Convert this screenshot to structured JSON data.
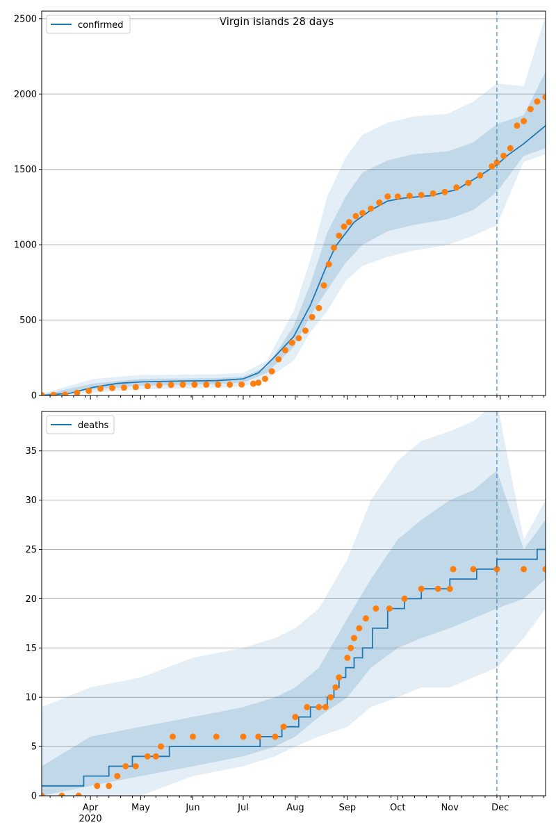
{
  "title": "Virgin Islands 28 days",
  "colors": {
    "model_line": "#1f77b4",
    "observed": "#ff7f0e",
    "band": "#1f77b4",
    "cutoff": "#1f77b4",
    "grid": "#b0b0b0"
  },
  "x_axis": {
    "months": [
      "Apr",
      "May",
      "Jun",
      "Jul",
      "Aug",
      "Sep",
      "Oct",
      "Nov",
      "Dec"
    ],
    "year_label": "2020",
    "start_date": "2020-03-03",
    "end_date": "2020-12-28",
    "forecast_start": "2020-11-29"
  },
  "chart_data": [
    {
      "type": "line",
      "legend_label": "confirmed",
      "legend_position": "top-left",
      "grid": "horizontal",
      "ylim": [
        0,
        2550
      ],
      "yticks": [
        0,
        500,
        1000,
        1500,
        2000,
        2500
      ],
      "model": {
        "x": [
          "2020-03-03",
          "2020-03-20",
          "2020-04-03",
          "2020-04-17",
          "2020-05-01",
          "2020-05-22",
          "2020-06-15",
          "2020-07-01",
          "2020-07-10",
          "2020-07-20",
          "2020-07-31",
          "2020-08-10",
          "2020-08-20",
          "2020-08-25",
          "2020-09-05",
          "2020-09-15",
          "2020-09-25",
          "2020-10-05",
          "2020-10-20",
          "2020-11-05",
          "2020-11-19",
          "2020-11-29",
          "2020-12-05",
          "2020-12-15",
          "2020-12-28"
        ],
        "y": [
          0,
          15,
          55,
          80,
          90,
          95,
          98,
          110,
          150,
          260,
          390,
          600,
          870,
          990,
          1150,
          1230,
          1290,
          1310,
          1325,
          1365,
          1460,
          1530,
          1590,
          1670,
          1790
        ]
      },
      "band_outer": {
        "x": [
          "2020-03-03",
          "2020-04-03",
          "2020-05-01",
          "2020-06-15",
          "2020-07-01",
          "2020-07-15",
          "2020-07-31",
          "2020-08-10",
          "2020-08-20",
          "2020-08-31",
          "2020-09-10",
          "2020-09-25",
          "2020-10-10",
          "2020-10-31",
          "2020-11-15",
          "2020-11-29",
          "2020-12-15",
          "2020-12-28"
        ],
        "low": [
          0,
          20,
          40,
          50,
          60,
          110,
          230,
          420,
          560,
          760,
          860,
          920,
          960,
          1000,
          1060,
          1130,
          1550,
          1600
        ],
        "high": [
          10,
          110,
          135,
          140,
          150,
          230,
          560,
          900,
          1320,
          1580,
          1730,
          1810,
          1850,
          1870,
          1950,
          2070,
          2050,
          2520
        ]
      },
      "band_inner": {
        "x": [
          "2020-03-03",
          "2020-04-03",
          "2020-05-01",
          "2020-06-15",
          "2020-07-01",
          "2020-07-15",
          "2020-07-31",
          "2020-08-10",
          "2020-08-20",
          "2020-08-31",
          "2020-09-10",
          "2020-09-25",
          "2020-10-10",
          "2020-10-31",
          "2020-11-15",
          "2020-11-29",
          "2020-12-15",
          "2020-12-28"
        ],
        "low": [
          0,
          40,
          65,
          75,
          85,
          150,
          320,
          530,
          700,
          880,
          1000,
          1090,
          1130,
          1170,
          1230,
          1350,
          1590,
          1640
        ],
        "high": [
          5,
          80,
          110,
          115,
          125,
          190,
          460,
          740,
          1080,
          1320,
          1480,
          1560,
          1600,
          1620,
          1680,
          1800,
          1860,
          2150
        ]
      },
      "observed": {
        "x": [
          "2020-03-03",
          "2020-03-10",
          "2020-03-17",
          "2020-03-24",
          "2020-03-31",
          "2020-04-07",
          "2020-04-14",
          "2020-04-21",
          "2020-04-28",
          "2020-05-05",
          "2020-05-12",
          "2020-05-19",
          "2020-05-26",
          "2020-06-02",
          "2020-06-09",
          "2020-06-16",
          "2020-06-23",
          "2020-06-30",
          "2020-07-07",
          "2020-07-10",
          "2020-07-14",
          "2020-07-18",
          "2020-07-22",
          "2020-07-26",
          "2020-07-30",
          "2020-08-03",
          "2020-08-07",
          "2020-08-11",
          "2020-08-15",
          "2020-08-18",
          "2020-08-21",
          "2020-08-24",
          "2020-08-27",
          "2020-08-30",
          "2020-09-02",
          "2020-09-06",
          "2020-09-10",
          "2020-09-15",
          "2020-09-20",
          "2020-09-25",
          "2020-10-01",
          "2020-10-08",
          "2020-10-15",
          "2020-10-22",
          "2020-10-29",
          "2020-11-05",
          "2020-11-12",
          "2020-11-19",
          "2020-11-26",
          "2020-11-29",
          "2020-12-03",
          "2020-12-07",
          "2020-12-11",
          "2020-12-15",
          "2020-12-19",
          "2020-12-23",
          "2020-12-28"
        ],
        "y": [
          2,
          3,
          5,
          18,
          30,
          45,
          50,
          52,
          56,
          62,
          68,
          70,
          72,
          72,
          72,
          72,
          72,
          73,
          78,
          85,
          110,
          160,
          240,
          300,
          350,
          380,
          430,
          520,
          580,
          730,
          870,
          980,
          1060,
          1120,
          1150,
          1190,
          1210,
          1240,
          1280,
          1320,
          1320,
          1325,
          1330,
          1340,
          1350,
          1380,
          1410,
          1460,
          1520,
          1545,
          1590,
          1640,
          1790,
          1820,
          1900,
          1950,
          1980
        ]
      }
    },
    {
      "type": "line",
      "legend_label": "deaths",
      "legend_position": "top-left",
      "grid": "horizontal",
      "ylim": [
        0,
        39
      ],
      "yticks": [
        0,
        5,
        10,
        15,
        20,
        25,
        30,
        35
      ],
      "model": {
        "x": [
          "2020-03-03",
          "2020-03-28",
          "2020-04-12",
          "2020-04-26",
          "2020-05-18",
          "2020-07-11",
          "2020-07-24",
          "2020-08-03",
          "2020-08-10",
          "2020-08-20",
          "2020-08-24",
          "2020-08-27",
          "2020-08-31",
          "2020-09-05",
          "2020-09-10",
          "2020-09-16",
          "2020-09-25",
          "2020-10-05",
          "2020-10-15",
          "2020-11-01",
          "2020-11-17",
          "2020-11-29",
          "2020-12-10",
          "2020-12-23"
        ],
        "y": [
          1,
          2,
          3,
          4,
          5,
          6,
          7,
          8,
          9,
          10,
          11,
          12,
          13,
          14,
          15,
          17,
          19,
          20,
          21,
          22,
          23,
          24,
          24,
          25
        ]
      },
      "band_outer": {
        "x": [
          "2020-03-03",
          "2020-04-01",
          "2020-05-01",
          "2020-06-01",
          "2020-07-01",
          "2020-07-20",
          "2020-08-01",
          "2020-08-15",
          "2020-09-01",
          "2020-09-15",
          "2020-10-01",
          "2020-10-15",
          "2020-11-01",
          "2020-11-15",
          "2020-11-29",
          "2020-12-15",
          "2020-12-28"
        ],
        "low": [
          0,
          0,
          0,
          2,
          3,
          4,
          5,
          6,
          7,
          9,
          10,
          11,
          11,
          12,
          13,
          16,
          19
        ],
        "high": [
          9,
          11,
          12,
          14,
          15,
          16,
          17,
          19,
          24,
          30,
          34,
          36,
          37,
          38,
          40,
          26,
          30
        ]
      },
      "band_inner": {
        "x": [
          "2020-03-03",
          "2020-04-01",
          "2020-05-01",
          "2020-06-01",
          "2020-07-01",
          "2020-07-20",
          "2020-08-01",
          "2020-08-15",
          "2020-09-01",
          "2020-09-15",
          "2020-10-01",
          "2020-10-15",
          "2020-11-01",
          "2020-11-15",
          "2020-11-29",
          "2020-12-15",
          "2020-12-28"
        ],
        "low": [
          0,
          1,
          2,
          3,
          4,
          5,
          6,
          8,
          10,
          13,
          15,
          16,
          17,
          18,
          19,
          20,
          22
        ],
        "high": [
          3,
          6,
          7,
          8,
          9,
          10,
          11,
          13,
          18,
          22,
          26,
          28,
          30,
          31,
          33,
          25,
          28
        ]
      },
      "observed": {
        "x": [
          "2020-03-03",
          "2020-03-15",
          "2020-03-25",
          "2020-04-05",
          "2020-04-12",
          "2020-04-17",
          "2020-04-22",
          "2020-04-28",
          "2020-05-05",
          "2020-05-10",
          "2020-05-13",
          "2020-05-20",
          "2020-06-01",
          "2020-06-15",
          "2020-07-01",
          "2020-07-10",
          "2020-07-20",
          "2020-07-25",
          "2020-08-01",
          "2020-08-08",
          "2020-08-15",
          "2020-08-19",
          "2020-08-22",
          "2020-08-25",
          "2020-08-27",
          "2020-09-01",
          "2020-09-03",
          "2020-09-05",
          "2020-09-08",
          "2020-09-12",
          "2020-09-18",
          "2020-09-26",
          "2020-10-05",
          "2020-10-15",
          "2020-10-25",
          "2020-11-01",
          "2020-11-03",
          "2020-11-15",
          "2020-11-29",
          "2020-12-15",
          "2020-12-28"
        ],
        "y": [
          0,
          0,
          0,
          1,
          1,
          2,
          3,
          3,
          4,
          4,
          5,
          6,
          6,
          6,
          6,
          6,
          6,
          7,
          8,
          9,
          9,
          9,
          10,
          11,
          12,
          14,
          15,
          16,
          17,
          18,
          19,
          19,
          20,
          21,
          21,
          21,
          23,
          23,
          23,
          23,
          23
        ]
      }
    }
  ]
}
